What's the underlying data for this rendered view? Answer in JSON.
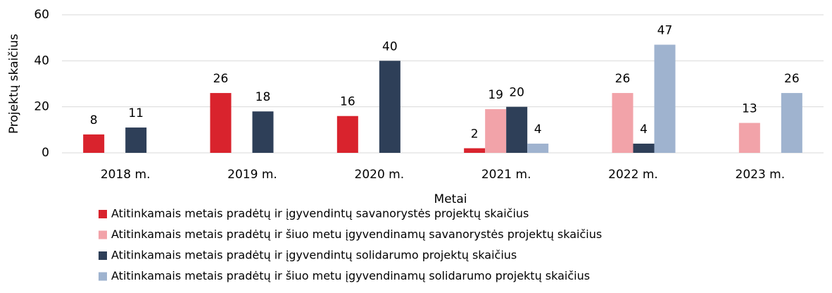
{
  "chart_data": {
    "type": "bar",
    "categories": [
      "2018 m.",
      "2019 m.",
      "2020 m.",
      "2021 m.",
      "2022 m.",
      "2023 m."
    ],
    "series": [
      {
        "name": "Atitinkamais metais pradėtų ir įgyvendintų savanorystės projektų skaičius",
        "color": "#d9232d",
        "values": [
          8,
          26,
          16,
          2,
          null,
          null
        ]
      },
      {
        "name": "Atitinkamais metais pradėtų ir šiuo metu įgyvendinamų savanorystės projektų skaičius",
        "color": "#f2a3a9",
        "values": [
          null,
          null,
          null,
          19,
          26,
          13
        ]
      },
      {
        "name": "Atitinkamais metais pradėtų ir įgyvendintų solidarumo projektų skaičius",
        "color": "#2e3f58",
        "values": [
          11,
          18,
          40,
          20,
          4,
          null
        ]
      },
      {
        "name": "Atitinkamais metais pradėtų ir šiuo metu įgyvendinamų solidarumo projektų skaičius",
        "color": "#9fb3cf",
        "values": [
          null,
          null,
          null,
          4,
          47,
          26
        ]
      }
    ],
    "x_label": "Metai",
    "y_label": "Projektų skaičius",
    "ylim": [
      0,
      60
    ],
    "yticks": [
      0,
      20,
      40,
      60
    ],
    "grid": true,
    "legend": "bottom"
  }
}
